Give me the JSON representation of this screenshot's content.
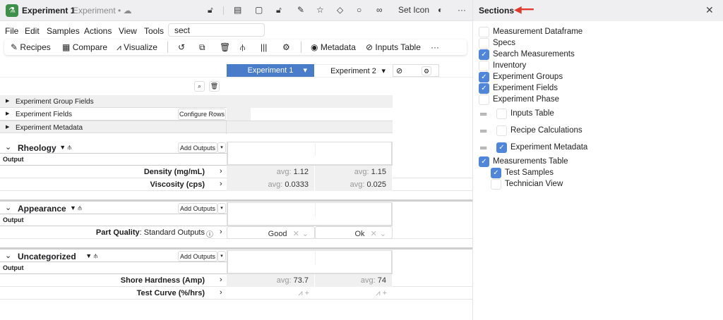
{
  "header": {
    "title": "Experiment 1",
    "subtitle": "Experiment •",
    "set_icon": "Set Icon",
    "icons": [
      "unlock-icon",
      "notebook-icon",
      "note-icon",
      "lock-icon",
      "pen-icon",
      "star-icon",
      "tag-icon",
      "comment-icon",
      "link-icon"
    ]
  },
  "menu": {
    "items": [
      "File",
      "Edit",
      "Samples",
      "Actions",
      "View",
      "Tools"
    ],
    "search_value": "sect"
  },
  "toolbar": {
    "recipes": "Recipes",
    "compare": "Compare",
    "visualize": "Visualize",
    "metadata": "Metadata",
    "inputs_table": "Inputs Table",
    "more": "···"
  },
  "experiments": [
    {
      "name": "Experiment 1",
      "active": true
    },
    {
      "name": "Experiment 2",
      "active": false
    }
  ],
  "accent": "#4a7dc9",
  "field_groups": {
    "group_fields": "Experiment Group Fields",
    "fields": "Experiment Fields",
    "configure_rows": "Configure Rows",
    "metadata": "Experiment Metadata"
  },
  "sections": [
    {
      "name": "Rheology",
      "add_outputs": "Add Outputs",
      "output_label": "Output",
      "rows": [
        {
          "label": "Density (mg/mL)",
          "values": [
            "1.12",
            "1.15"
          ],
          "prefix": "avg: "
        },
        {
          "label": "Viscosity (cps)",
          "values": [
            "0.0333",
            "0.025"
          ],
          "prefix": "avg: "
        }
      ]
    },
    {
      "name": "Appearance",
      "add_outputs": "Add Outputs",
      "output_label": "Output",
      "rows": [
        {
          "label": "Part Quality",
          "suffix": ": Standard Outputs",
          "select": true,
          "values": [
            "Good",
            "Ok"
          ]
        }
      ]
    },
    {
      "name": "Uncategorized",
      "add_outputs": "Add Outputs",
      "output_label": "Output",
      "rows": [
        {
          "label": "Shore Hardness (Amp)",
          "values": [
            "73.7",
            "74"
          ],
          "prefix": "avg: "
        },
        {
          "label": "Test Curve (%/hrs)",
          "chart": true,
          "values": [
            "",
            ""
          ]
        }
      ]
    }
  ],
  "sidebar": {
    "title": "Sections",
    "items": [
      {
        "label": "Measurement Dataframe",
        "checked": false,
        "level": 0
      },
      {
        "label": "Specs",
        "checked": false,
        "level": 0
      },
      {
        "label": "Search Measurements",
        "checked": true,
        "level": 0
      },
      {
        "label": "Inventory",
        "checked": false,
        "level": 0
      },
      {
        "label": "Experiment Groups",
        "checked": true,
        "level": 0
      },
      {
        "label": "Experiment Fields",
        "checked": true,
        "level": 0
      },
      {
        "label": "Experiment Phase",
        "checked": false,
        "level": 0
      },
      {
        "label": "Inputs Table",
        "checked": false,
        "level": 1,
        "drag": true
      },
      {
        "label": "Recipe Calculations",
        "checked": false,
        "level": 1,
        "drag": true
      },
      {
        "label": "Experiment Metadata",
        "checked": true,
        "level": 1,
        "drag": true
      },
      {
        "label": "Measurements Table",
        "checked": true,
        "level": 0
      },
      {
        "label": "Test Samples",
        "checked": true,
        "level": 2
      },
      {
        "label": "Technician View",
        "checked": false,
        "level": 2
      }
    ]
  }
}
